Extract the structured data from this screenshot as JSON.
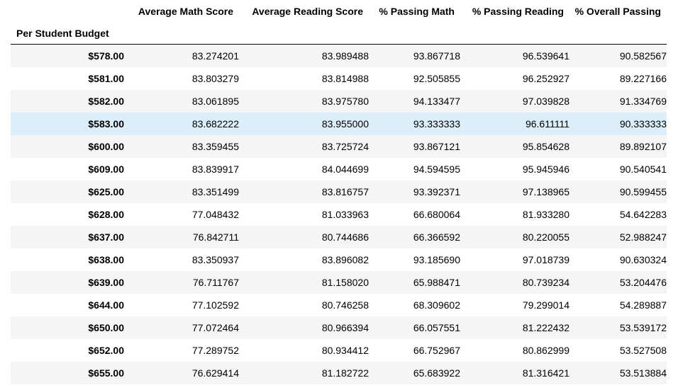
{
  "table": {
    "index_name": "Per Student Budget",
    "columns": [
      "Average Math Score",
      "Average Reading Score",
      "% Passing Math",
      "% Passing Reading",
      "% Overall Passing"
    ],
    "rows": [
      {
        "index": "$578.00",
        "values": [
          "83.274201",
          "83.989488",
          "93.867718",
          "96.539641",
          "90.582567"
        ]
      },
      {
        "index": "$581.00",
        "values": [
          "83.803279",
          "83.814988",
          "92.505855",
          "96.252927",
          "89.227166"
        ]
      },
      {
        "index": "$582.00",
        "values": [
          "83.061895",
          "83.975780",
          "94.133477",
          "97.039828",
          "91.334769"
        ]
      },
      {
        "index": "$583.00",
        "values": [
          "83.682222",
          "83.955000",
          "93.333333",
          "96.611111",
          "90.333333"
        ]
      },
      {
        "index": "$600.00",
        "values": [
          "83.359455",
          "83.725724",
          "93.867121",
          "95.854628",
          "89.892107"
        ]
      },
      {
        "index": "$609.00",
        "values": [
          "83.839917",
          "84.044699",
          "94.594595",
          "95.945946",
          "90.540541"
        ]
      },
      {
        "index": "$625.00",
        "values": [
          "83.351499",
          "83.816757",
          "93.392371",
          "97.138965",
          "90.599455"
        ]
      },
      {
        "index": "$628.00",
        "values": [
          "77.048432",
          "81.033963",
          "66.680064",
          "81.933280",
          "54.642283"
        ]
      },
      {
        "index": "$637.00",
        "values": [
          "76.842711",
          "80.744686",
          "66.366592",
          "80.220055",
          "52.988247"
        ]
      },
      {
        "index": "$638.00",
        "values": [
          "83.350937",
          "83.896082",
          "93.185690",
          "97.018739",
          "90.630324"
        ]
      },
      {
        "index": "$639.00",
        "values": [
          "76.711767",
          "81.158020",
          "65.988471",
          "80.739234",
          "53.204476"
        ]
      },
      {
        "index": "$644.00",
        "values": [
          "77.102592",
          "80.746258",
          "68.309602",
          "79.299014",
          "54.289887"
        ]
      },
      {
        "index": "$650.00",
        "values": [
          "77.072464",
          "80.966394",
          "66.057551",
          "81.222432",
          "53.539172"
        ]
      },
      {
        "index": "$652.00",
        "values": [
          "77.289752",
          "80.934412",
          "66.752967",
          "80.862999",
          "53.527508"
        ]
      },
      {
        "index": "$655.00",
        "values": [
          "76.629414",
          "81.182722",
          "65.683922",
          "81.316421",
          "53.513884"
        ]
      }
    ]
  },
  "colors": {
    "row_odd": "#f5f5f5",
    "row_even": "#ffffff",
    "row_hover": "#dbeefa",
    "header_rule": "#000000"
  },
  "hovered_row_index": 3
}
